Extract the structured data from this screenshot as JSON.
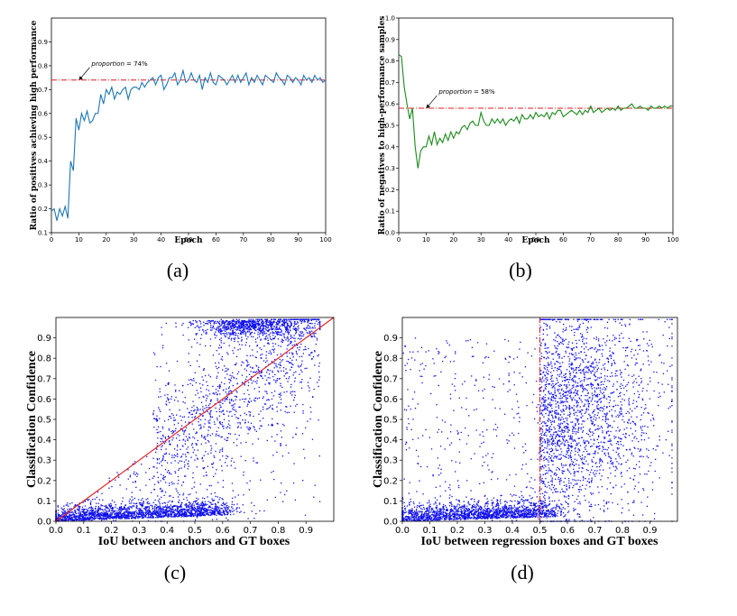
{
  "chart_data": [
    {
      "id": "a",
      "type": "line",
      "caption": "(a)",
      "xlabel": "Epoch",
      "ylabel": "Ratio of positives achieving high performance",
      "xlim": [
        0,
        100
      ],
      "ylim": [
        0.1,
        1.0
      ],
      "xticks": [
        "0",
        "10",
        "20",
        "30",
        "40",
        "50",
        "60",
        "70",
        "80",
        "90",
        "100"
      ],
      "yticks": [
        "0.1",
        "0.2",
        "0.3",
        "0.4",
        "0.5",
        "0.6",
        "0.7",
        "0.8",
        "0.9"
      ],
      "reference_y": 0.74,
      "reference_color": "#e41a1c",
      "annotation": {
        "prefix": "proportion",
        "value": "= 74%",
        "x": 10,
        "y": 0.74
      },
      "series_color": "#1f77b4",
      "x": [
        0,
        1,
        2,
        3,
        4,
        5,
        6,
        7,
        8,
        9,
        10,
        11,
        12,
        13,
        14,
        15,
        16,
        17,
        18,
        19,
        20,
        21,
        22,
        23,
        24,
        25,
        26,
        27,
        28,
        29,
        30,
        31,
        32,
        33,
        34,
        35,
        36,
        37,
        38,
        39,
        40,
        41,
        42,
        43,
        44,
        45,
        46,
        47,
        48,
        49,
        50,
        51,
        52,
        53,
        54,
        55,
        56,
        57,
        58,
        59,
        60,
        61,
        62,
        63,
        64,
        65,
        66,
        67,
        68,
        69,
        70,
        71,
        72,
        73,
        74,
        75,
        76,
        77,
        78,
        79,
        80,
        81,
        82,
        83,
        84,
        85,
        86,
        87,
        88,
        89,
        90,
        91,
        92,
        93,
        94,
        95,
        96,
        97,
        98,
        99,
        100
      ],
      "y": [
        0.19,
        0.2,
        0.15,
        0.2,
        0.17,
        0.21,
        0.16,
        0.4,
        0.36,
        0.58,
        0.53,
        0.6,
        0.57,
        0.61,
        0.56,
        0.57,
        0.6,
        0.6,
        0.68,
        0.64,
        0.7,
        0.68,
        0.71,
        0.66,
        0.69,
        0.68,
        0.7,
        0.71,
        0.66,
        0.7,
        0.71,
        0.71,
        0.7,
        0.73,
        0.71,
        0.73,
        0.74,
        0.75,
        0.72,
        0.75,
        0.76,
        0.7,
        0.72,
        0.75,
        0.75,
        0.77,
        0.72,
        0.74,
        0.78,
        0.73,
        0.74,
        0.77,
        0.74,
        0.73,
        0.76,
        0.7,
        0.75,
        0.73,
        0.77,
        0.73,
        0.72,
        0.76,
        0.75,
        0.74,
        0.72,
        0.74,
        0.76,
        0.73,
        0.76,
        0.73,
        0.75,
        0.77,
        0.72,
        0.75,
        0.73,
        0.76,
        0.74,
        0.72,
        0.76,
        0.75,
        0.74,
        0.73,
        0.77,
        0.75,
        0.74,
        0.72,
        0.76,
        0.75,
        0.73,
        0.75,
        0.74,
        0.72,
        0.76,
        0.74,
        0.75,
        0.73,
        0.76,
        0.74,
        0.75,
        0.73,
        0.74
      ]
    },
    {
      "id": "b",
      "type": "line",
      "caption": "(b)",
      "xlabel": "Epoch",
      "ylabel": "Ratio of negatives to high-performance samples",
      "xlim": [
        0,
        100
      ],
      "ylim": [
        0.0,
        1.0
      ],
      "xticks": [
        "0",
        "10",
        "20",
        "30",
        "40",
        "50",
        "60",
        "70",
        "80",
        "90",
        "100"
      ],
      "yticks": [
        "0.0",
        "0.1",
        "0.2",
        "0.3",
        "0.4",
        "0.5",
        "0.6",
        "0.7",
        "0.8",
        "0.9",
        "1.0"
      ],
      "reference_y": 0.58,
      "reference_color": "#e41a1c",
      "annotation": {
        "prefix": "proportion",
        "value": "= 58%",
        "x": 10,
        "y": 0.58
      },
      "series_color": "#1a8a1a",
      "x": [
        0,
        1,
        2,
        3,
        4,
        5,
        6,
        7,
        8,
        9,
        10,
        11,
        12,
        13,
        14,
        15,
        16,
        17,
        18,
        19,
        20,
        21,
        22,
        23,
        24,
        25,
        26,
        27,
        28,
        29,
        30,
        31,
        32,
        33,
        34,
        35,
        36,
        37,
        38,
        39,
        40,
        41,
        42,
        43,
        44,
        45,
        46,
        47,
        48,
        49,
        50,
        51,
        52,
        53,
        54,
        55,
        56,
        57,
        58,
        59,
        60,
        61,
        62,
        63,
        64,
        65,
        66,
        67,
        68,
        69,
        70,
        71,
        72,
        73,
        74,
        75,
        76,
        77,
        78,
        79,
        80,
        81,
        82,
        83,
        84,
        85,
        86,
        87,
        88,
        89,
        90,
        91,
        92,
        93,
        94,
        95,
        96,
        97,
        98,
        99,
        100
      ],
      "y": [
        0.83,
        0.82,
        0.68,
        0.6,
        0.53,
        0.58,
        0.4,
        0.3,
        0.38,
        0.4,
        0.4,
        0.45,
        0.41,
        0.47,
        0.41,
        0.44,
        0.42,
        0.46,
        0.43,
        0.47,
        0.44,
        0.47,
        0.46,
        0.49,
        0.5,
        0.48,
        0.51,
        0.52,
        0.5,
        0.5,
        0.56,
        0.52,
        0.5,
        0.5,
        0.53,
        0.51,
        0.53,
        0.51,
        0.53,
        0.5,
        0.52,
        0.53,
        0.52,
        0.54,
        0.51,
        0.55,
        0.53,
        0.53,
        0.55,
        0.53,
        0.56,
        0.54,
        0.55,
        0.54,
        0.56,
        0.53,
        0.56,
        0.55,
        0.57,
        0.57,
        0.54,
        0.55,
        0.56,
        0.57,
        0.56,
        0.55,
        0.57,
        0.55,
        0.57,
        0.56,
        0.59,
        0.56,
        0.57,
        0.58,
        0.56,
        0.57,
        0.58,
        0.57,
        0.58,
        0.57,
        0.59,
        0.57,
        0.58,
        0.58,
        0.59,
        0.6,
        0.58,
        0.58,
        0.59,
        0.58,
        0.58,
        0.57,
        0.59,
        0.58,
        0.58,
        0.59,
        0.58,
        0.59,
        0.58,
        0.59,
        0.59
      ]
    },
    {
      "id": "c",
      "type": "scatter",
      "caption": "(c)",
      "xlabel": "IoU between anchors and GT boxes",
      "ylabel": "Classification Confidence",
      "xlim": [
        0.0,
        1.0
      ],
      "ylim": [
        0.0,
        1.0
      ],
      "xticks": [
        "0.0",
        "0.1",
        "0.2",
        "0.3",
        "0.4",
        "0.5",
        "0.6",
        "0.7",
        "0.8",
        "0.9"
      ],
      "yticks": [
        "0.0",
        "0.1",
        "0.2",
        "0.3",
        "0.4",
        "0.5",
        "0.6",
        "0.7",
        "0.8",
        "0.9"
      ],
      "point_color": "#1010ee",
      "reference": "diagonal y = x",
      "reference_color": "#e41a1c",
      "point_count": 4200
    },
    {
      "id": "d",
      "type": "scatter",
      "caption": "(d)",
      "xlabel": "IoU between regression boxes and GT boxes",
      "ylabel": "Classification Confidence",
      "xlim": [
        0.0,
        1.0
      ],
      "ylim": [
        0.0,
        1.0
      ],
      "xticks": [
        "0.0",
        "0.1",
        "0.2",
        "0.3",
        "0.4",
        "0.5",
        "0.6",
        "0.7",
        "0.8",
        "0.9"
      ],
      "yticks": [
        "0.0",
        "0.1",
        "0.2",
        "0.3",
        "0.4",
        "0.5",
        "0.6",
        "0.7",
        "0.8",
        "0.9"
      ],
      "point_color": "#1010ee",
      "reference": "vertical x = 0.5",
      "reference_x": 0.5,
      "reference_color": "#e41a1c",
      "point_count": 4200
    }
  ]
}
